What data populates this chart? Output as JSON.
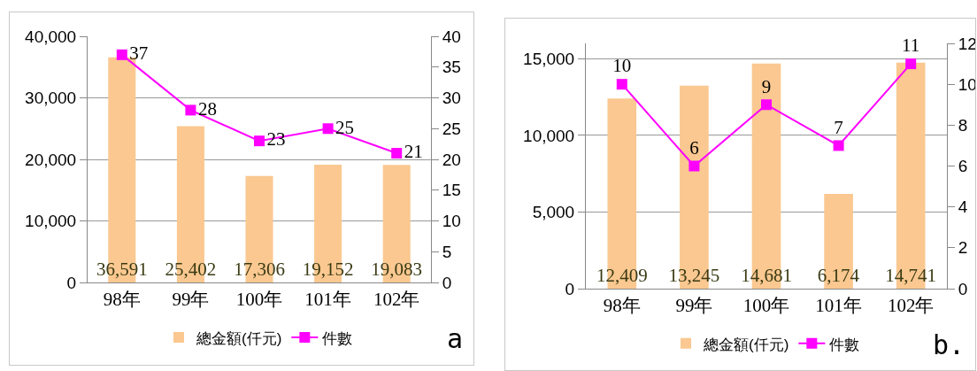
{
  "chart_data": [
    {
      "type": "bar",
      "categories": [
        "98年",
        "99年",
        "100年",
        "101年",
        "102年"
      ],
      "ylim": [
        0,
        40000
      ],
      "yticks": [
        0,
        {
          "value": 10000,
          "label": "10,000"
        },
        {
          "value": 20000,
          "label": "20,000"
        },
        {
          "value": 30000,
          "label": "30,000"
        },
        {
          "value": 40000,
          "label": "40,000"
        }
      ],
      "y2lim": [
        0,
        40
      ],
      "y2ticks": [
        0,
        5,
        10,
        15,
        20,
        25,
        30,
        35,
        40
      ],
      "grid": "y",
      "legend": "bottom",
      "marker": "square",
      "data_labels": true,
      "annotations": [
        "a"
      ],
      "series": [
        {
          "name": "總金額(仟元)",
          "color": "#fac890",
          "values": [
            36591,
            25402,
            17306,
            19152,
            19083
          ],
          "value_labels": [
            "36,591",
            "25,402",
            "17,306",
            "19,152",
            "19,083"
          ]
        },
        {
          "name": "件數",
          "type": "line",
          "axis": "y2",
          "color": "#ff00ff",
          "values": [
            37,
            28,
            23,
            25,
            21
          ]
        }
      ]
    },
    {
      "type": "bar",
      "categories": [
        "98年",
        "99年",
        "100年",
        "101年",
        "102年"
      ],
      "ylim": [
        0,
        16000
      ],
      "yticks": [
        0,
        {
          "value": 5000,
          "label": "5,000"
        },
        {
          "value": 10000,
          "label": "10,000"
        },
        {
          "value": 15000,
          "label": "15,000"
        }
      ],
      "y2lim": [
        0,
        12
      ],
      "y2ticks": [
        0,
        2,
        4,
        6,
        8,
        10,
        12
      ],
      "grid": "y",
      "legend": "bottom",
      "marker": "square",
      "data_labels": true,
      "annotations": [
        "b."
      ],
      "series": [
        {
          "name": "總金額(仟元)",
          "color": "#fac890",
          "values": [
            12409,
            13245,
            14681,
            6174,
            14741
          ],
          "value_labels": [
            "12,409",
            "13,245",
            "14,681",
            "6,174",
            "14,741"
          ]
        },
        {
          "name": "件數",
          "type": "line",
          "axis": "y2",
          "color": "#ff00ff",
          "values": [
            10,
            6,
            9,
            7,
            11
          ]
        }
      ]
    }
  ]
}
